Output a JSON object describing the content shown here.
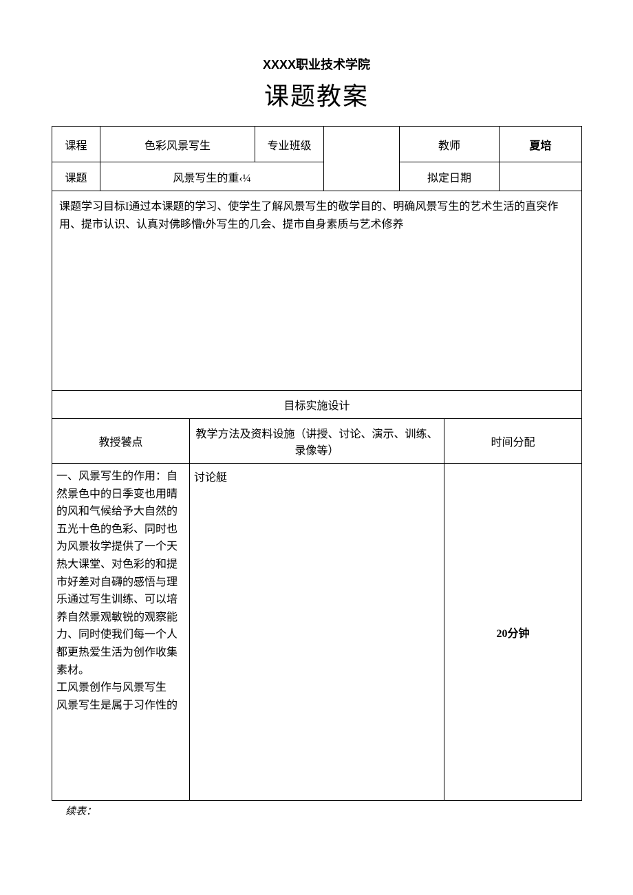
{
  "header": {
    "institution": "XXXX职业技术学院",
    "title": "课题教案"
  },
  "info_row1": {
    "course_label": "课程",
    "course_value": "色彩风景写生",
    "class_label": "专业班级",
    "class_value": "",
    "teacher_label": "教师",
    "teacher_value": "夏培"
  },
  "info_row2": {
    "topic_label": "课题",
    "topic_value": "风景写生的重‹¼",
    "date_label": "拟定日期",
    "date_value": ""
  },
  "goal": {
    "text": "课题学习目标I通过本课题的学习、使学生了解风景写生的敬学目的、明确风景写生的艺术生活的直突作用、提市认识、认真对佛眵懵t外写生的几会、提市自身素质与艺术修养"
  },
  "design": {
    "section_title": "目标实施设计",
    "col1_header": "教授饕点",
    "col2_header": "教学方法及资料设施（讲授、讨论、演示、训练、录像等）",
    "col3_header": "时间分配",
    "col1_content": "一、风景写生的作用：自然景色中的日季变也用晴的风和气候给予大自然的五光十色的色彩、同时也为风景妆学提供了一个天热大课堂、对色彩的和提市好差对自礴的感悟与理乐通过写生训练、可以培养自然景观敏锐的观察能力、同时使我们每一个人都更热爱生活为创作收集素材。\n工风景创作与风景写生\n风景写生是属于习作性的",
    "col2_content": "讨论艇",
    "col3_content": "20分钟"
  },
  "footer": {
    "continue": "续表："
  },
  "styles": {
    "border_color": "#000000",
    "background_color": "#ffffff",
    "institution_fontsize": 18,
    "title_fontsize": 36,
    "body_fontsize": 16
  }
}
